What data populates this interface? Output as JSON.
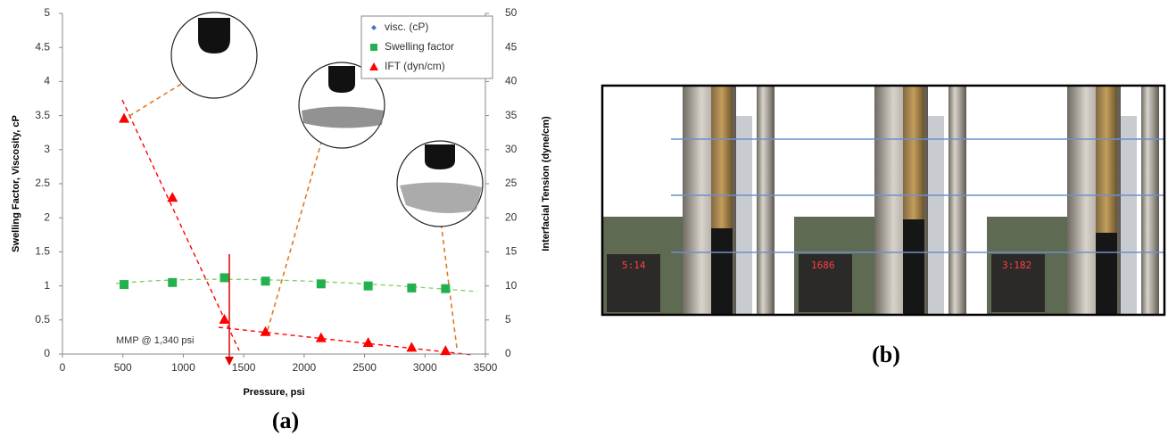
{
  "chart_data": {
    "type": "scatter",
    "xlabel": "Pressure, psi",
    "ylabel": "Swelling Factor, Viscosity, cP",
    "y2label": "Interfacial Tension (dyne/cm)",
    "xlim": [
      0,
      3500
    ],
    "xticks": [
      0,
      500,
      1000,
      1500,
      2000,
      2500,
      3000,
      3500
    ],
    "ylim": [
      0,
      5
    ],
    "yticks": [
      0,
      0.5,
      1,
      1.5,
      2,
      2.5,
      3,
      3.5,
      4,
      4.5,
      5
    ],
    "y2lim": [
      0,
      50
    ],
    "y2ticks": [
      0,
      5,
      10,
      15,
      20,
      25,
      30,
      35,
      40,
      45,
      50
    ],
    "x": [
      510,
      910,
      1340,
      1680,
      2140,
      2530,
      2890,
      3170
    ],
    "series": [
      {
        "name": "visc. (cP)",
        "color": "#4472c4",
        "marker": "diamond",
        "values": [
          null,
          null,
          null,
          null,
          null,
          null,
          null,
          null
        ]
      },
      {
        "name": "Swelling factor",
        "color": "#22b14c",
        "marker": "square",
        "values": [
          1.02,
          1.05,
          1.12,
          1.07,
          1.03,
          1.0,
          0.97,
          0.96
        ]
      },
      {
        "name": "IFT (dyn/cm)",
        "color": "#ff0000",
        "marker": "triangle",
        "axis": "y2",
        "values": [
          34.6,
          23.0,
          5.1,
          3.3,
          2.4,
          1.7,
          1.0,
          0.5
        ]
      }
    ],
    "annotation": "MMP @ 1,340 psi",
    "panel_label": "(a)",
    "legend": "upper right"
  },
  "photo": {
    "panel_label": "(b)",
    "displays": [
      "5:14",
      "1686",
      "3:182"
    ]
  }
}
